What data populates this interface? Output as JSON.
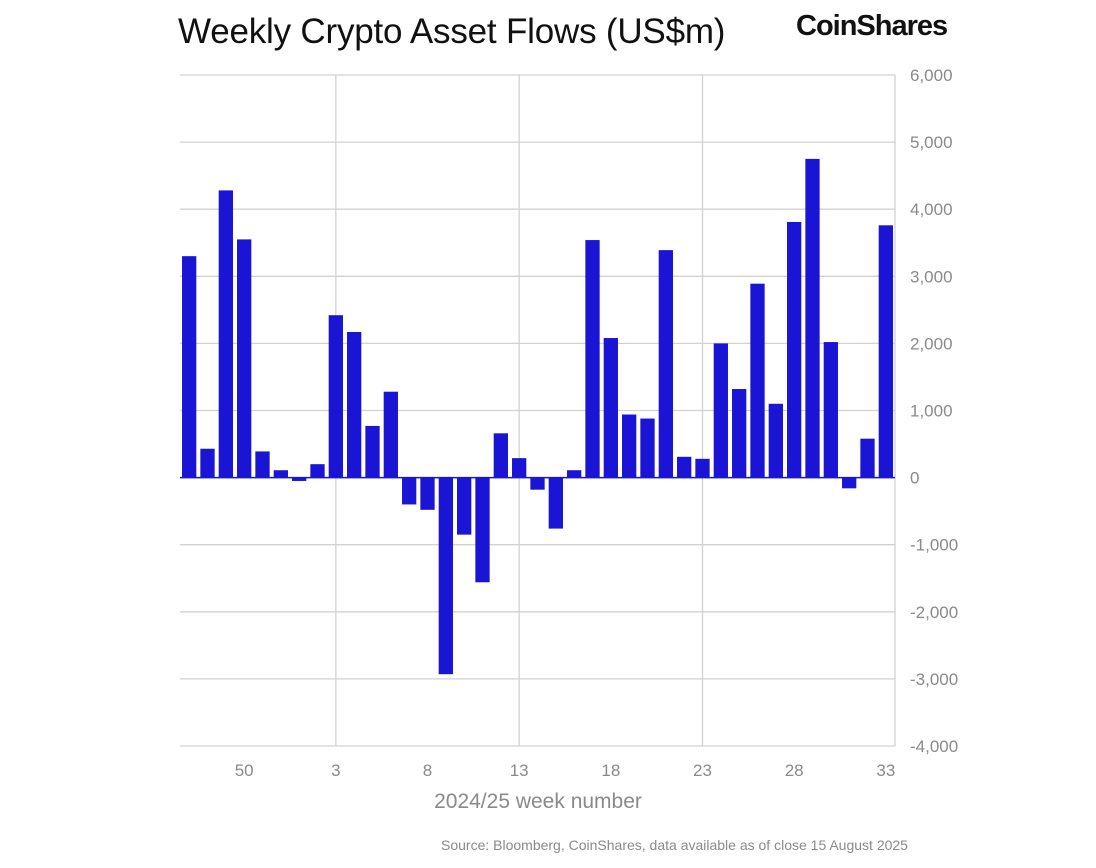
{
  "chart_data": {
    "type": "bar",
    "title": "Weekly Crypto Asset Flows (US$m)",
    "xlabel": "2024/25 week number",
    "ylabel": "",
    "ylim": [
      -4000,
      6000
    ],
    "y_ticks": [
      -4000,
      -3000,
      -2000,
      -1000,
      0,
      1000,
      2000,
      3000,
      4000,
      5000,
      6000
    ],
    "y_tick_labels": [
      "-4,000",
      "-3,000",
      "-2,000",
      "-1,000",
      "0",
      "1,000",
      "2,000",
      "3,000",
      "4,000",
      "5,000",
      "6,000"
    ],
    "x_tick_labels": [
      {
        "week": "50",
        "index": 3
      },
      {
        "week": "3",
        "index": 8
      },
      {
        "week": "8",
        "index": 13
      },
      {
        "week": "13",
        "index": 18
      },
      {
        "week": "18",
        "index": 23
      },
      {
        "week": "23",
        "index": 28
      },
      {
        "week": "28",
        "index": 33
      },
      {
        "week": "33",
        "index": 38
      }
    ],
    "grid": true,
    "axis_position": "right",
    "bar_color": "#1a14d4",
    "series": [
      {
        "values": [
          3300,
          430,
          4280,
          3550,
          390,
          110,
          -50,
          200,
          2420,
          2170,
          770,
          1280,
          -400,
          -480,
          -2930,
          -850,
          -1560,
          660,
          290,
          -180,
          -760,
          110,
          3540,
          2080,
          940,
          880,
          3390,
          310,
          280,
          2000,
          1320,
          2890,
          1100,
          3810,
          4750,
          2020,
          -160,
          580,
          3760
        ]
      }
    ]
  },
  "logo_text": "CoinShares",
  "source": "Source: Bloomberg, CoinShares, data available as of close 15 August 2025"
}
